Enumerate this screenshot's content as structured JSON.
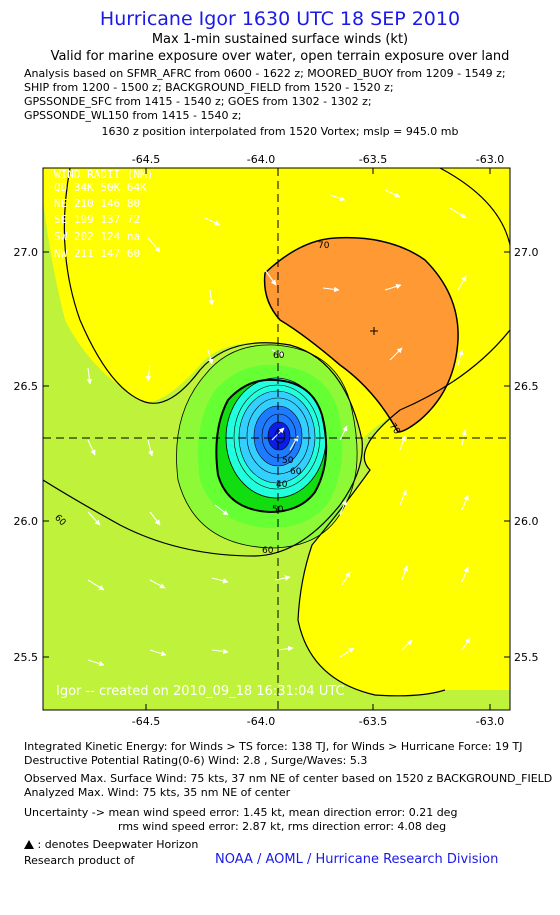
{
  "title": "Hurricane Igor 1630 UTC 18 SEP 2010",
  "subtitle1": "Max 1-min sustained surface winds (kt)",
  "subtitle2": "Valid for marine exposure over water, open terrain exposure over land",
  "analysis_lines": [
    "Analysis based on SFMR_AFRC from 0600 - 1622 z; MOORED_BUOY from 1209 - 1549 z;",
    "SHIP from 1200 - 1500 z; BACKGROUND_FIELD from 1520 - 1520 z;",
    "GPSSONDE_SFC from 1415 - 1540 z; GOES from 1302 - 1302 z;",
    "GPSSONDE_WL150 from 1415 - 1540 z;"
  ],
  "position_line": "1630 z position interpolated from 1520 Vortex; mslp = 945.0 mb",
  "map": {
    "lon_ticks": [
      "-64.5",
      "-64.0",
      "-63.5",
      "-63.0"
    ],
    "lat_ticks": [
      "27.0",
      "26.5",
      "26.0",
      "25.5"
    ],
    "contour_labels": [
      "70",
      "60",
      "70",
      "60",
      "50",
      "40",
      "60",
      "50",
      "60"
    ],
    "wind_radii": [
      "WIND RADII (NM)",
      "QD  34K  50K  64K",
      "NE  210  146  80",
      "SE  199  137  72",
      "SW  202  124  na",
      "NW  211  147  60"
    ],
    "credit": "Igor -- created on 2010_09_18 16:31:04 UTC",
    "colors": {
      "yellow": "#ffff00",
      "yellow_green": "#bff23a",
      "orange": "#ff9933",
      "green_light": "#66ff33",
      "green": "#11dd11",
      "cyan": "#22ffdd",
      "sky": "#33d0ff",
      "blue_mid": "#1e7bff",
      "blue_dark": "#0a1ee6"
    }
  },
  "footer": {
    "ike": "Integrated Kinetic Energy:  for Winds > TS force: 138 TJ,  for Winds > Hurricane Force: 19 TJ",
    "dpr": "Destructive Potential Rating(0-6)   Wind: 2.8 , Surge/Waves: 5.3",
    "observed": "Observed Max. Surface Wind: 75 kts, 37 nm NE of center based on 1520 z BACKGROUND_FIELD",
    "analyzed": "Analyzed Max. Wind: 75 kts, 35 nm NE of center",
    "uncertainty1": "Uncertainty -> mean wind speed error: 1.45 kt,   mean direction error: 0.21 deg",
    "uncertainty2": "rms wind speed error: 2.87 kt,   rms direction error: 4.08 deg",
    "deepwater": ": denotes Deepwater Horizon",
    "research": "Research product of",
    "org": "NOAA / AOML / Hurricane Research Division"
  }
}
